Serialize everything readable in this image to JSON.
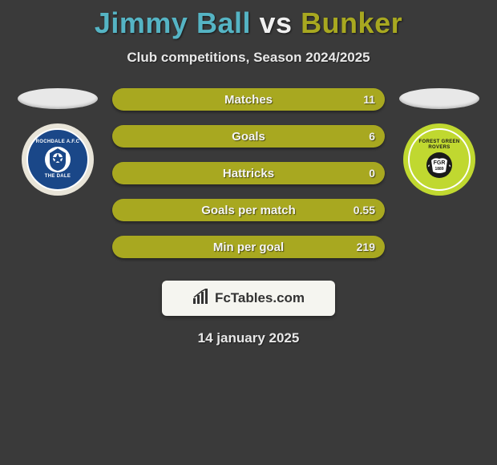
{
  "title": {
    "player1": "Jimmy Ball",
    "vs": "vs",
    "player2": "Bunker",
    "player1_color": "#55b4c4",
    "vs_color": "#f0f0f0",
    "player2_color": "#a8a820",
    "fontsize": 36
  },
  "subtitle": "Club competitions, Season 2024/2025",
  "subtitle_color": "#e8e8e8",
  "background_color": "#3a3a3a",
  "left_badge": {
    "outer_color": "#e8e4d8",
    "inner_color": "#1a4788",
    "ring_color": "#ffffff",
    "top_text": "ROCHDALE A.F.C",
    "bottom_text": "THE DALE"
  },
  "right_badge": {
    "outer_color": "#c0d830",
    "inner_color": "#1a1a1a",
    "ring_color": "#ffffff",
    "top_text": "FOREST GREEN ROVERS",
    "center_text": "FGR",
    "year": "1889"
  },
  "oval_color": "#e8e8e8",
  "bar_style": {
    "height": 28,
    "radius": 14,
    "left_color": "#4a98a8",
    "right_color": "#a8a820",
    "label_color": "#f5f5f5",
    "value_color": "#f0f0f0",
    "label_fontsize": 15
  },
  "stats": [
    {
      "label": "Matches",
      "value": "11",
      "left_ratio": 0.0
    },
    {
      "label": "Goals",
      "value": "6",
      "left_ratio": 0.0
    },
    {
      "label": "Hattricks",
      "value": "0",
      "left_ratio": 0.0
    },
    {
      "label": "Goals per match",
      "value": "0.55",
      "left_ratio": 0.0
    },
    {
      "label": "Min per goal",
      "value": "219",
      "left_ratio": 0.0
    }
  ],
  "brand": {
    "text": "FcTables.com",
    "bg_color": "#f5f5f0",
    "text_color": "#333333",
    "icon_color": "#333333"
  },
  "date": "14 january 2025",
  "date_color": "#e8e8e8"
}
